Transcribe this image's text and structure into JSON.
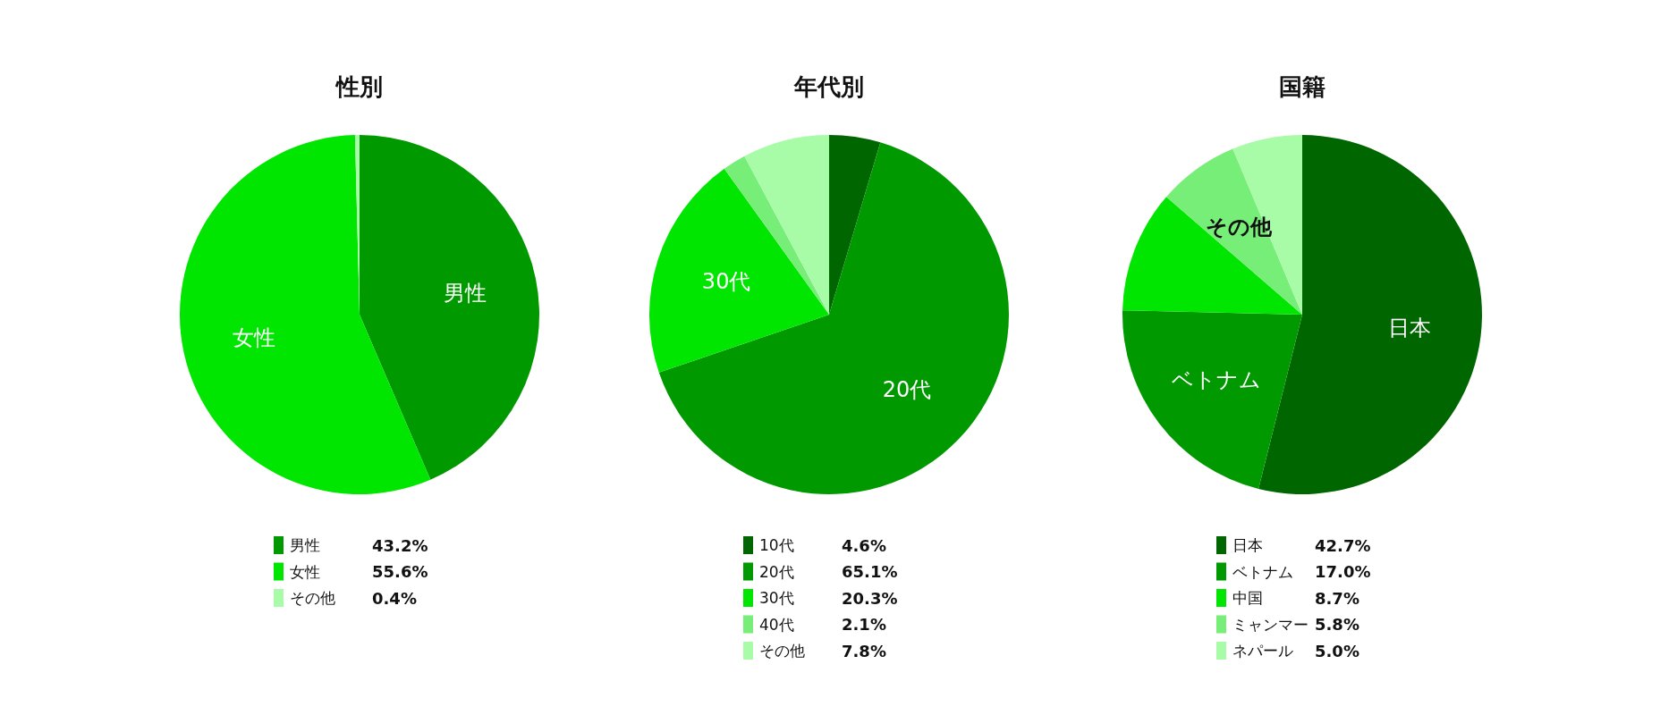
{
  "chart_data": [
    {
      "type": "pie",
      "title": "性別",
      "categories": [
        "男性",
        "女性",
        "その他"
      ],
      "values": [
        43.2,
        55.6,
        0.4
      ],
      "colors": [
        "#009900",
        "#00e600",
        "#a8fca8"
      ],
      "legend": "bottom",
      "value_labels": [
        "43.2%",
        "55.6%",
        "0.4%"
      ],
      "annotations": [
        {
          "text": "男性",
          "x": "男性"
        },
        {
          "text": "女性",
          "x": "女性"
        }
      ]
    },
    {
      "type": "pie",
      "title": "年代別",
      "categories": [
        "10代",
        "20代",
        "30代",
        "40代",
        "その他"
      ],
      "values": [
        4.6,
        65.1,
        20.3,
        2.1,
        7.8
      ],
      "colors": [
        "#006600",
        "#009900",
        "#00e600",
        "#77ee77",
        "#a8fca8"
      ],
      "legend": "bottom",
      "value_labels": [
        "4.6%",
        "65.1%",
        "20.3%",
        "2.1%",
        "7.8%"
      ],
      "annotations": [
        {
          "text": "20代",
          "x": "20代"
        },
        {
          "text": "30代",
          "x": "30代"
        }
      ]
    },
    {
      "type": "pie",
      "title": "国籍",
      "categories": [
        "日本",
        "ベトナム",
        "中国",
        "ミャンマー",
        "ネパール"
      ],
      "values": [
        42.7,
        17.0,
        8.7,
        5.8,
        5.0
      ],
      "colors": [
        "#006600",
        "#009900",
        "#00e600",
        "#77ee77",
        "#a8fca8"
      ],
      "legend": "bottom",
      "value_labels": [
        "42.7%",
        "17.0%",
        "8.7%",
        "5.8%",
        "5.0%"
      ],
      "annotations": [
        {
          "text": "日本",
          "x": "日本"
        },
        {
          "text": "ベトナム",
          "x": "ベトナム"
        },
        {
          "text": "その他",
          "x": "ミャンマー"
        }
      ]
    }
  ]
}
